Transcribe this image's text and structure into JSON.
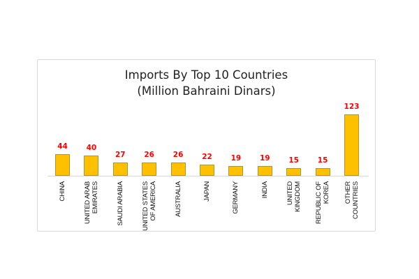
{
  "chart_data": {
    "type": "bar",
    "title": "Imports By Top 10 Countries",
    "subtitle": "(Million Bahraini Dinars)",
    "xlabel": "",
    "ylabel": "",
    "categories": [
      "CHINA",
      "UNITED ARAB EMIRATES",
      "SAUDI ARABIA",
      "UNITED STATES OF AMERICA",
      "AUSTRALIA",
      "JAPAN",
      "GERMANY",
      "INDIA",
      "UNITED KINGDOM",
      "REPUBLIC OF KOREA",
      "OTHER COUNTRIES"
    ],
    "category_lines": [
      [
        "CHINA"
      ],
      [
        "UNITED ARAB",
        "EMIRATES"
      ],
      [
        "SAUDI ARABIA"
      ],
      [
        "UNITED STATES",
        "OF AMERICA"
      ],
      [
        "AUSTRALIA"
      ],
      [
        "JAPAN"
      ],
      [
        "GERMANY"
      ],
      [
        "INDIA"
      ],
      [
        "UNITED",
        "KINGDOM"
      ],
      [
        "REPUBLIC OF",
        "KOREA"
      ],
      [
        "OTHER",
        "COUNTRIES"
      ]
    ],
    "values": [
      44,
      40,
      27,
      26,
      26,
      22,
      19,
      19,
      15,
      15,
      123
    ],
    "data_labels": true,
    "grid": false,
    "legend": "none",
    "y_axis_visible": false,
    "ylim": [
      0,
      123
    ]
  },
  "colors": {
    "bar_fill": "#ffc000",
    "bar_border": "#a59a3a",
    "value_label": "#ff0000",
    "title": "#222222",
    "frame": "#d9d9d9"
  }
}
